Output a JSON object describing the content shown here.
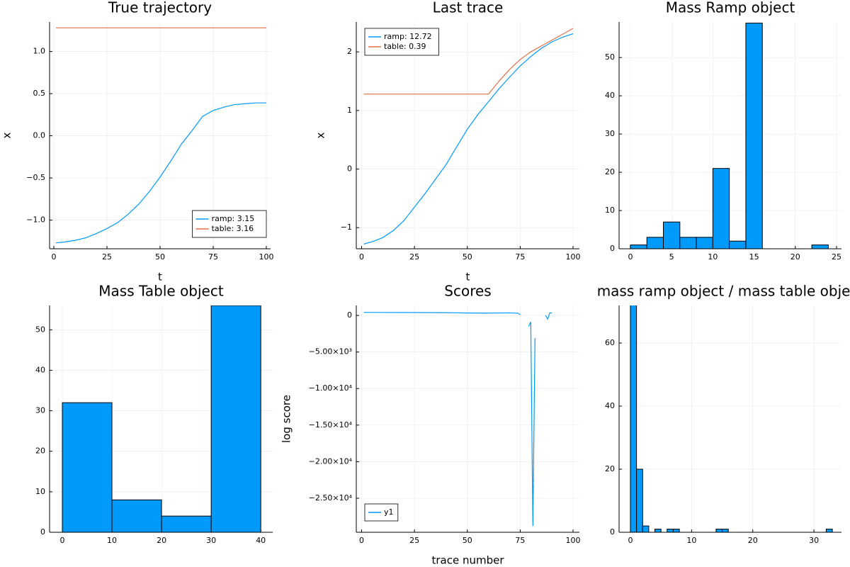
{
  "chart_data": [
    {
      "type": "line",
      "title": "True trajectory",
      "x_label": "t",
      "y_label": "x",
      "x": [
        1,
        5,
        10,
        15,
        20,
        25,
        30,
        35,
        40,
        45,
        50,
        55,
        60,
        65,
        70,
        75,
        80,
        85,
        90,
        95,
        100
      ],
      "series": [
        {
          "name": "ramp: 3.15",
          "color": "#009AFA",
          "values": [
            -1.27,
            -1.26,
            -1.24,
            -1.21,
            -1.16,
            -1.1,
            -1.03,
            -0.93,
            -0.81,
            -0.66,
            -0.49,
            -0.3,
            -0.1,
            0.06,
            0.23,
            0.3,
            0.34,
            0.37,
            0.38,
            0.39,
            0.39
          ]
        },
        {
          "name": "table: 3.16",
          "color": "#E26F46",
          "values": [
            1.28,
            1.28,
            1.28,
            1.28,
            1.28,
            1.28,
            1.28,
            1.28,
            1.28,
            1.28,
            1.28,
            1.28,
            1.28,
            1.28,
            1.28,
            1.28,
            1.28,
            1.28,
            1.28,
            1.28,
            1.28
          ]
        }
      ],
      "xlim": [
        -2,
        102
      ],
      "xticks": [
        0,
        25,
        50,
        75,
        100
      ],
      "ylim": [
        -1.34,
        1.35
      ],
      "yticks": [
        {
          "value": -1,
          "label": "−1.0"
        },
        {
          "value": -0.5,
          "label": "−0.5"
        },
        {
          "value": 0,
          "label": "0.0"
        },
        {
          "value": 0.5,
          "label": "0.5"
        },
        {
          "value": 1,
          "label": "1.0"
        }
      ],
      "grid": true,
      "legend": "bottom right"
    },
    {
      "type": "line",
      "title": "Last trace",
      "x_label": "t",
      "y_label": "x",
      "x": [
        1,
        5,
        10,
        15,
        20,
        25,
        30,
        35,
        40,
        45,
        50,
        55,
        60,
        65,
        70,
        75,
        80,
        85,
        90,
        95,
        100
      ],
      "series": [
        {
          "name": "ramp: 12.72",
          "color": "#009AFA",
          "values": [
            -1.28,
            -1.24,
            -1.17,
            -1.05,
            -0.88,
            -0.65,
            -0.42,
            -0.17,
            0.08,
            0.38,
            0.68,
            0.93,
            1.15,
            1.37,
            1.57,
            1.76,
            1.92,
            2.06,
            2.17,
            2.25,
            2.31
          ]
        },
        {
          "name": "table: 0.39",
          "color": "#E26F46",
          "values": [
            1.28,
            1.28,
            1.28,
            1.28,
            1.28,
            1.28,
            1.28,
            1.28,
            1.28,
            1.28,
            1.28,
            1.28,
            1.28,
            1.5,
            1.7,
            1.87,
            2.0,
            2.1,
            2.2,
            2.3,
            2.4
          ]
        }
      ],
      "xlim": [
        -2.5,
        103
      ],
      "xticks": [
        0,
        25,
        50,
        75,
        100
      ],
      "ylim": [
        -1.36,
        2.51
      ],
      "yticks": [
        {
          "value": -1,
          "label": "−1"
        },
        0,
        1,
        2
      ],
      "grid": true,
      "legend": "top left"
    },
    {
      "type": "histogram",
      "title": "Mass Ramp object",
      "color": "#009AFA",
      "bins": [
        0,
        2,
        4,
        6,
        8,
        10,
        12,
        14,
        16,
        18,
        20,
        22,
        24
      ],
      "counts": [
        1,
        3,
        7,
        3,
        3,
        21,
        2,
        59,
        0,
        0,
        0,
        1
      ],
      "xlim": [
        -1.37,
        25.6
      ],
      "xticks": [
        0,
        5,
        10,
        15,
        20,
        25
      ],
      "ylim": [
        0,
        59.3
      ],
      "yticks": [
        0,
        10,
        20,
        30,
        40,
        50
      ],
      "grid": true
    },
    {
      "type": "histogram",
      "title": "Mass Table object",
      "color": "#009AFA",
      "bins": [
        0,
        10,
        20,
        30,
        40
      ],
      "counts": [
        32,
        8,
        4,
        56
      ],
      "xlim": [
        -2.57,
        42.4
      ],
      "xticks": [
        0,
        10,
        20,
        30,
        40
      ],
      "ylim": [
        0,
        56
      ],
      "yticks": [
        0,
        10,
        20,
        30,
        40,
        50
      ],
      "grid": true
    },
    {
      "type": "line",
      "title": "Scores",
      "x_label": "trace number",
      "y_label": "log score",
      "x": [
        1,
        10,
        20,
        30,
        40,
        50,
        60,
        70,
        74,
        75,
        76,
        79,
        80,
        81,
        82,
        86,
        87,
        88,
        89,
        90
      ],
      "series": [
        {
          "name": "y1",
          "color": "#009AFA",
          "values": [
            420,
            410,
            400,
            390,
            380,
            330,
            320,
            350,
            300,
            100,
            null,
            -1500,
            -900,
            -28800,
            -3100,
            null,
            0,
            -500,
            350,
            350
          ]
        }
      ],
      "xlim": [
        -2.5,
        103
      ],
      "xticks": [
        0,
        25,
        50,
        75,
        100
      ],
      "ylim": [
        -29650,
        1360
      ],
      "yticks": [
        {
          "value": -25000,
          "label": "−2.50×10⁴"
        },
        {
          "value": -20000,
          "label": "−2.00×10⁴"
        },
        {
          "value": -15000,
          "label": "−1.50×10⁴"
        },
        {
          "value": -10000,
          "label": "−1.00×10⁴"
        },
        {
          "value": -5000,
          "label": "−5.00×10³"
        },
        0
      ],
      "grid": true,
      "legend": "bottom left"
    },
    {
      "type": "histogram",
      "title": "mass ramp object / mass table object",
      "color": "#009AFA",
      "bins": [
        0,
        1,
        2,
        3,
        4,
        5,
        6,
        7,
        8,
        9,
        10,
        11,
        12,
        13,
        14,
        15,
        16,
        17,
        18,
        19,
        20,
        21,
        22,
        23,
        24,
        25,
        26,
        27,
        28,
        29,
        30,
        31,
        32,
        33
      ],
      "counts": [
        72,
        20,
        2,
        0,
        1,
        0,
        1,
        1,
        0,
        0,
        0,
        0,
        0,
        0,
        1,
        1,
        0,
        0,
        0,
        0,
        0,
        0,
        0,
        0,
        0,
        0,
        0,
        0,
        0,
        0,
        0,
        0,
        1
      ],
      "xlim": [
        -1.85,
        34.5
      ],
      "xticks": [
        0,
        10,
        20,
        30
      ],
      "ylim": [
        0,
        71.9
      ],
      "yticks": [
        0,
        20,
        40,
        60
      ],
      "grid": true
    }
  ]
}
